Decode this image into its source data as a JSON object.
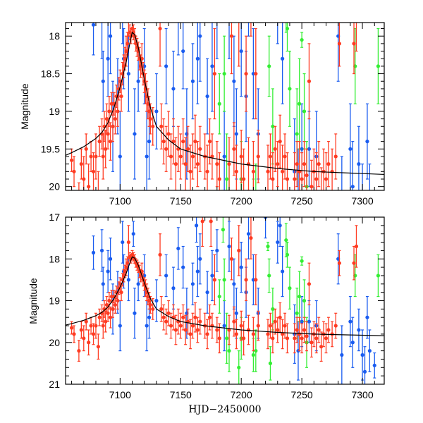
{
  "chart_data": [
    {
      "type": "scatter",
      "panel": "top",
      "xlabel": "",
      "ylabel": "Magnitude",
      "xlim": [
        7055,
        7318
      ],
      "ylim": [
        20.05,
        17.82
      ],
      "y_inverted": true,
      "xticks": [
        7100,
        7150,
        7200,
        7250,
        7300
      ],
      "xtick_labels": [
        "7100",
        "7150",
        "7200",
        "7250",
        "7300"
      ],
      "yticks": [
        18,
        18.5,
        19,
        19.5,
        20
      ],
      "ytick_labels": [
        "18",
        "18.5",
        "19",
        "19.5",
        "20"
      ],
      "x_minor_step": 10,
      "y_minor_step": 0.1
    },
    {
      "type": "scatter",
      "panel": "bottom",
      "xlabel": "HJD−2450000",
      "ylabel": "Magnitude",
      "xlim": [
        7055,
        7318
      ],
      "ylim": [
        21,
        17
      ],
      "y_inverted": true,
      "xticks": [
        7100,
        7150,
        7200,
        7250,
        7300
      ],
      "xtick_labels": [
        "7100",
        "7150",
        "7200",
        "7250",
        "7300"
      ],
      "yticks": [
        17,
        18,
        19,
        20,
        21
      ],
      "ytick_labels": [
        "17",
        "18",
        "19",
        "20",
        "21"
      ],
      "x_minor_step": 10,
      "y_minor_step": 0.2
    }
  ],
  "series": {
    "model": {
      "name": "model",
      "color": "#000000",
      "points": [
        [
          7050,
          19.62
        ],
        [
          7060,
          19.55
        ],
        [
          7070,
          19.47
        ],
        [
          7080,
          19.36
        ],
        [
          7085,
          19.28
        ],
        [
          7090,
          19.15
        ],
        [
          7095,
          18.95
        ],
        [
          7100,
          18.68
        ],
        [
          7105,
          18.35
        ],
        [
          7108,
          18.1
        ],
        [
          7110,
          17.95
        ],
        [
          7112,
          17.98
        ],
        [
          7115,
          18.15
        ],
        [
          7118,
          18.4
        ],
        [
          7121,
          18.65
        ],
        [
          7125,
          18.95
        ],
        [
          7130,
          19.2
        ],
        [
          7140,
          19.38
        ],
        [
          7150,
          19.5
        ],
        [
          7170,
          19.6
        ],
        [
          7200,
          19.7
        ],
        [
          7230,
          19.76
        ],
        [
          7260,
          19.8
        ],
        [
          7290,
          19.82
        ],
        [
          7320,
          19.84
        ]
      ]
    },
    "red": {
      "name": "red",
      "color": "#ff3b22",
      "points": [
        [
          7060,
          19.65,
          0.15
        ],
        [
          7062,
          19.8,
          0.2
        ],
        [
          7066,
          20.2,
          0.25
        ],
        [
          7068,
          19.7,
          0.2
        ],
        [
          7070,
          19.9,
          0.3
        ],
        [
          7072,
          19.5,
          0.2
        ],
        [
          7074,
          20.0,
          0.3
        ],
        [
          7076,
          19.6,
          0.2
        ],
        [
          7078,
          19.8,
          0.25
        ],
        [
          7080,
          19.6,
          0.3
        ],
        [
          7082,
          20.1,
          0.3
        ],
        [
          7083,
          19.4,
          0.2
        ],
        [
          7085,
          19.3,
          0.2
        ],
        [
          7086,
          19.6,
          0.3
        ],
        [
          7087,
          19.2,
          0.2
        ],
        [
          7088,
          19.5,
          0.25
        ],
        [
          7089,
          19.1,
          0.2
        ],
        [
          7090,
          19.3,
          0.2
        ],
        [
          7091,
          19.0,
          0.2
        ],
        [
          7092,
          19.4,
          0.25
        ],
        [
          7093,
          18.9,
          0.15
        ],
        [
          7094,
          19.2,
          0.2
        ],
        [
          7095,
          18.9,
          0.15
        ],
        [
          7096,
          19.1,
          0.2
        ],
        [
          7097,
          18.8,
          0.15
        ],
        [
          7098,
          19.0,
          0.2
        ],
        [
          7099,
          18.7,
          0.15
        ],
        [
          7100,
          18.6,
          0.15
        ],
        [
          7101,
          18.8,
          0.2
        ],
        [
          7102,
          18.5,
          0.15
        ],
        [
          7103,
          18.4,
          0.15
        ],
        [
          7104,
          18.3,
          0.15
        ],
        [
          7105,
          18.2,
          0.2
        ],
        [
          7106,
          18.1,
          0.15
        ],
        [
          7107,
          17.6,
          0.4
        ],
        [
          7108,
          17.95,
          0.1
        ],
        [
          7109,
          18.0,
          0.1
        ],
        [
          7110,
          17.9,
          0.1
        ],
        [
          7111,
          17.95,
          0.1
        ],
        [
          7112,
          18.0,
          0.1
        ],
        [
          7113,
          18.1,
          0.1
        ],
        [
          7114,
          18.15,
          0.12
        ],
        [
          7115,
          18.2,
          0.12
        ],
        [
          7116,
          18.3,
          0.15
        ],
        [
          7117,
          18.4,
          0.15
        ],
        [
          7118,
          18.3,
          0.2
        ],
        [
          7119,
          18.5,
          0.15
        ],
        [
          7120,
          18.6,
          0.15
        ],
        [
          7121,
          18.7,
          0.2
        ],
        [
          7122,
          18.8,
          0.2
        ],
        [
          7123,
          18.9,
          0.2
        ],
        [
          7124,
          19.0,
          0.2
        ],
        [
          7125,
          19.1,
          0.2
        ],
        [
          7127,
          19.2,
          0.25
        ],
        [
          7133,
          17.9,
          0.5
        ],
        [
          7134,
          19.2,
          0.3
        ],
        [
          7136,
          19.4,
          0.3
        ],
        [
          7138,
          19.5,
          0.3
        ],
        [
          7140,
          19.3,
          0.3
        ],
        [
          7142,
          19.6,
          0.3
        ],
        [
          7144,
          19.4,
          0.3
        ],
        [
          7146,
          19.7,
          0.35
        ],
        [
          7148,
          19.5,
          0.3
        ],
        [
          7150,
          19.6,
          0.3
        ],
        [
          7152,
          19.4,
          0.3
        ],
        [
          7154,
          19.7,
          0.35
        ],
        [
          7156,
          19.5,
          0.3
        ],
        [
          7158,
          19.8,
          0.35
        ],
        [
          7160,
          19.6,
          0.3
        ],
        [
          7162,
          19.4,
          0.35
        ],
        [
          7164,
          19.7,
          0.3
        ],
        [
          7166,
          19.5,
          0.3
        ],
        [
          7168,
          17.1,
          0.6
        ],
        [
          7170,
          19.6,
          0.3
        ],
        [
          7172,
          19.8,
          0.35
        ],
        [
          7174,
          19.4,
          0.3
        ],
        [
          7175,
          17.1,
          0.6
        ],
        [
          7176,
          19.6,
          0.3
        ],
        [
          7178,
          18.5,
          0.6
        ],
        [
          7180,
          19.7,
          0.3
        ],
        [
          7182,
          19.9,
          0.35
        ],
        [
          7190,
          19.7,
          0.35
        ],
        [
          7192,
          18.0,
          0.5
        ],
        [
          7194,
          19.5,
          0.35
        ],
        [
          7196,
          19.8,
          0.35
        ],
        [
          7198,
          17.8,
          0.6
        ],
        [
          7200,
          19.6,
          0.35
        ],
        [
          7202,
          19.9,
          0.4
        ],
        [
          7204,
          18.5,
          0.5
        ],
        [
          7206,
          19.7,
          0.35
        ],
        [
          7208,
          17.5,
          0.5
        ],
        [
          7210,
          19.8,
          0.4
        ],
        [
          7212,
          18.5,
          0.6
        ],
        [
          7214,
          19.6,
          0.35
        ],
        [
          7222,
          19.8,
          0.35
        ],
        [
          7224,
          19.6,
          0.3
        ],
        [
          7226,
          19.9,
          0.35
        ],
        [
          7228,
          19.5,
          0.3
        ],
        [
          7230,
          19.7,
          0.3
        ],
        [
          7232,
          19.4,
          0.35
        ],
        [
          7234,
          19.8,
          0.35
        ],
        [
          7236,
          19.6,
          0.3
        ],
        [
          7238,
          19.9,
          0.35
        ],
        [
          7244,
          19.9,
          0.35
        ],
        [
          7246,
          19.7,
          0.3
        ],
        [
          7248,
          19.8,
          0.4
        ],
        [
          7250,
          19.9,
          0.35
        ],
        [
          7252,
          19.7,
          0.3
        ],
        [
          7254,
          19.85,
          0.35
        ],
        [
          7256,
          18.6,
          0.5
        ],
        [
          7258,
          20.0,
          0.35
        ],
        [
          7260,
          19.8,
          0.3
        ],
        [
          7262,
          19.9,
          0.35
        ],
        [
          7264,
          19.7,
          0.3
        ],
        [
          7266,
          20.1,
          0.35
        ],
        [
          7268,
          19.8,
          0.3
        ],
        [
          7270,
          19.9,
          0.35
        ],
        [
          7272,
          19.7,
          0.3
        ],
        [
          7275,
          19.8,
          0.3
        ],
        [
          7278,
          19.6,
          0.3
        ],
        [
          7281,
          18.1,
          0.3
        ],
        [
          7293,
          18.1,
          0.4
        ],
        [
          7295,
          17.7,
          0.5
        ]
      ]
    },
    "blue": {
      "name": "blue",
      "color": "#1a5cf0",
      "points": [
        [
          7078,
          17.85,
          0.4
        ],
        [
          7085,
          17.8,
          0.5
        ],
        [
          7086,
          18.6,
          0.4
        ],
        [
          7090,
          18.3,
          0.5
        ],
        [
          7092,
          18.0,
          0.5
        ],
        [
          7094,
          19.2,
          0.6
        ],
        [
          7098,
          18.8,
          0.5
        ],
        [
          7100,
          19.6,
          0.6
        ],
        [
          7102,
          17.6,
          0.5
        ],
        [
          7103,
          18.3,
          0.4
        ],
        [
          7107,
          18.5,
          0.5
        ],
        [
          7111,
          17.4,
          0.3
        ],
        [
          7112,
          19.3,
          0.6
        ],
        [
          7115,
          18.6,
          0.4
        ],
        [
          7120,
          18.4,
          0.5
        ],
        [
          7122,
          19.6,
          0.6
        ],
        [
          7124,
          19.4,
          0.5
        ],
        [
          7130,
          19.0,
          0.5
        ],
        [
          7138,
          18.4,
          0.5
        ],
        [
          7144,
          18.7,
          0.5
        ],
        [
          7148,
          17.75,
          0.5
        ],
        [
          7152,
          18.2,
          0.5
        ],
        [
          7155,
          19.3,
          0.6
        ],
        [
          7160,
          18.6,
          0.5
        ],
        [
          7163,
          17.2,
          0.4
        ],
        [
          7164,
          18.3,
          0.6
        ],
        [
          7166,
          18.0,
          0.6
        ],
        [
          7172,
          18.8,
          0.5
        ],
        [
          7176,
          18.4,
          0.6
        ],
        [
          7180,
          17.8,
          0.5
        ],
        [
          7186,
          19.6,
          0.6
        ],
        [
          7190,
          17.7,
          0.6
        ],
        [
          7194,
          18.6,
          0.6
        ],
        [
          7196,
          19.3,
          0.6
        ],
        [
          7200,
          18.2,
          0.6
        ],
        [
          7204,
          18.8,
          0.6
        ],
        [
          7206,
          17.4,
          0.6
        ],
        [
          7210,
          18.5,
          0.6
        ],
        [
          7214,
          19.3,
          0.6
        ],
        [
          7220,
          17.0,
          0.5
        ],
        [
          7230,
          17.6,
          0.5
        ],
        [
          7232,
          17.2,
          0.5
        ],
        [
          7234,
          18.3,
          0.6
        ],
        [
          7244,
          19.8,
          0.7
        ],
        [
          7247,
          20.2,
          0.7
        ],
        [
          7250,
          19.5,
          0.6
        ],
        [
          7256,
          19.5,
          0.5
        ],
        [
          7262,
          19.6,
          0.6
        ],
        [
          7280,
          18.0,
          0.6
        ],
        [
          7283,
          20.3,
          0.7
        ],
        [
          7290,
          19.5,
          0.6
        ],
        [
          7292,
          20.0,
          0.6
        ],
        [
          7297,
          19.7,
          0.5
        ],
        [
          7300,
          20.3,
          0.6
        ],
        [
          7302,
          20.7,
          0.6
        ],
        [
          7304,
          19.4,
          0.5
        ],
        [
          7306,
          20.2,
          0.5
        ],
        [
          7310,
          20.55,
          0.3
        ]
      ]
    },
    "green": {
      "name": "green",
      "color": "#33ee33",
      "points": [
        [
          7182,
          18.9,
          0.4
        ],
        [
          7185,
          17.3,
          0.3
        ],
        [
          7186,
          18.5,
          0.5
        ],
        [
          7188,
          19.9,
          0.6
        ],
        [
          7190,
          20.2,
          0.5
        ],
        [
          7198,
          20.6,
          0.4
        ],
        [
          7200,
          19.9,
          0.5
        ],
        [
          7210,
          20.3,
          0.4
        ],
        [
          7212,
          20.2,
          0.5
        ],
        [
          7222,
          17.7,
          0.1
        ],
        [
          7223,
          18.4,
          0.4
        ],
        [
          7224,
          20.5,
          0.4
        ],
        [
          7226,
          19.2,
          0.5
        ],
        [
          7237,
          17.55,
          0.4
        ],
        [
          7238,
          17.9,
          0.3
        ],
        [
          7240,
          18.7,
          0.5
        ],
        [
          7246,
          19.3,
          0.6
        ],
        [
          7248,
          18.9,
          0.6
        ],
        [
          7250,
          18.05,
          0.1
        ],
        [
          7252,
          19.0,
          0.5
        ],
        [
          7254,
          20.0,
          0.6
        ],
        [
          7294,
          18.4,
          0.5
        ],
        [
          7313,
          18.4,
          0.5
        ]
      ]
    }
  }
}
